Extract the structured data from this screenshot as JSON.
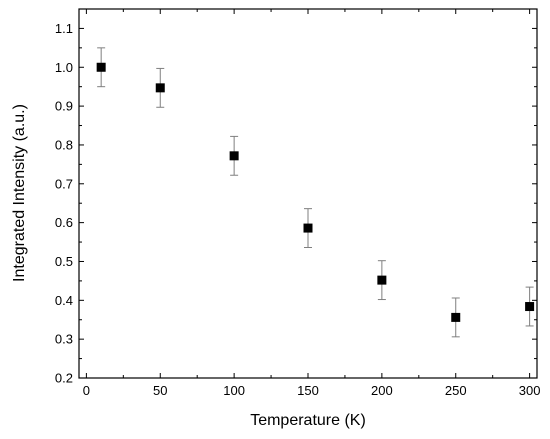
{
  "chart_data": {
    "type": "scatter",
    "title": "",
    "xlabel": "Temperature (K)",
    "ylabel": "Integrated Intensity (a.u.)",
    "xlim": [
      -5,
      305
    ],
    "ylim": [
      0.2,
      1.15
    ],
    "x_ticks": [
      0,
      50,
      100,
      150,
      200,
      250,
      300
    ],
    "x_tick_labels": [
      "0",
      "50",
      "100",
      "150",
      "200",
      "250",
      "300"
    ],
    "y_ticks": [
      0.2,
      0.3,
      0.4,
      0.5,
      0.6,
      0.7,
      0.8,
      0.9,
      1.0,
      1.1
    ],
    "y_tick_labels": [
      "0.2",
      "0.3",
      "0.4",
      "0.5",
      "0.6",
      "0.7",
      "0.8",
      "0.9",
      "1.0",
      "1.1"
    ],
    "grid": false,
    "legend": false,
    "marker": "square",
    "marker_color": "#000000",
    "errorbar_color": "#7f7f7f",
    "series": [
      {
        "x": [
          10,
          50,
          100,
          150,
          200,
          250,
          300
        ],
        "y": [
          1.0,
          0.947,
          0.772,
          0.586,
          0.452,
          0.356,
          0.384
        ],
        "err": [
          0.05,
          0.05,
          0.05,
          0.05,
          0.05,
          0.05,
          0.05
        ]
      }
    ]
  }
}
